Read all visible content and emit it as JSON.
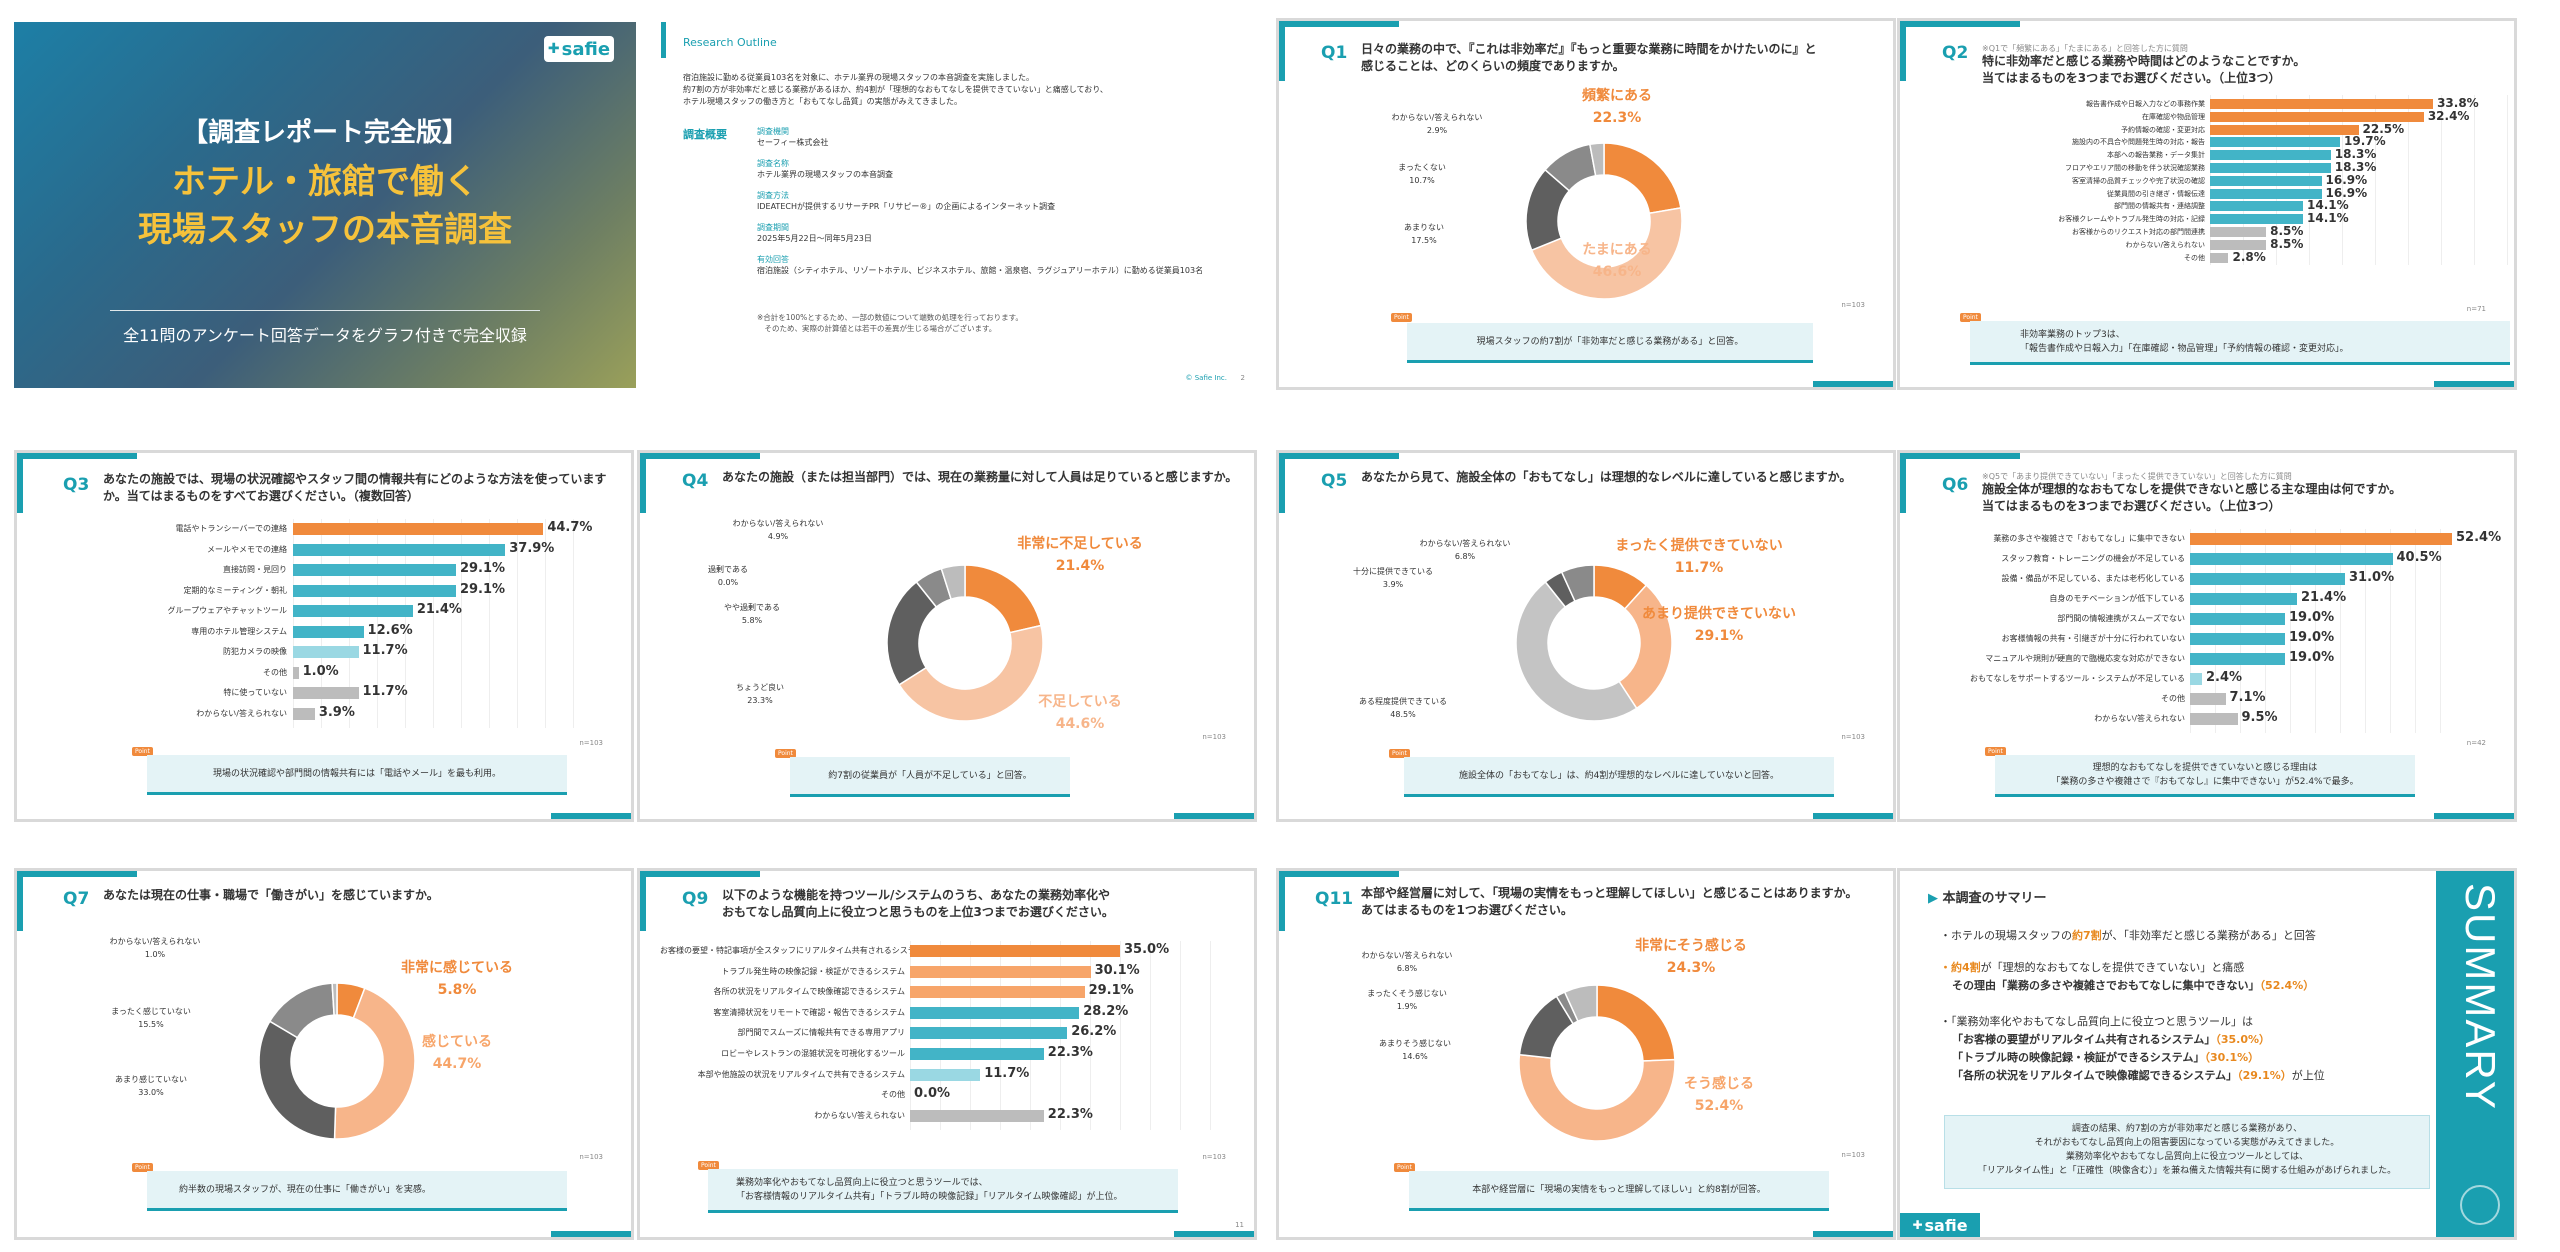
{
  "colors": {
    "orange": "#f08a3c",
    "peach": "#f7c4a3",
    "dark": "#5f5f5f",
    "gray": "#bcbcbc",
    "teal": "#42b4c7",
    "lightteal": "#9ad8e3",
    "lightgray": "#d2d2d2",
    "accent_teal": "#1a9fb0"
  },
  "cover": {
    "logo": "safie",
    "title_line1": "【調査レポート完全版】",
    "title_line2": "ホテル・旅館で働く",
    "title_line3": "現場スタッフの本音調査",
    "subtitle": "全11問のアンケート回答データをグラフ付きで完全収録"
  },
  "outline": {
    "heading": "Research Outline",
    "intro": "宿泊施設に勤める従業員103名を対象に、ホテル業界の現場スタッフの本音調査を実施しました。\n約7割の方が非効率だと感じる業務があるほか、約4割が「理想的なおもてなしを提供できていない」と痛感しており、\nホテル現場スタッフの働き方と「おもてなし品質」の実態がみえてきました。",
    "section_label": "調査概要",
    "items": [
      {
        "k": "調査機関",
        "v": "セーフィー株式会社"
      },
      {
        "k": "調査名称",
        "v": "ホテル業界の現場スタッフの本音調査"
      },
      {
        "k": "調査方法",
        "v": "IDEATECHが提供するリサーチPR「リサピー®」の企画によるインターネット調査"
      },
      {
        "k": "調査期間",
        "v": "2025年5月22日〜同年5月23日"
      },
      {
        "k": "有効回答",
        "v": "宿泊施設（シティホテル、リゾートホテル、ビジネスホテル、旅館・温泉宿、ラグジュアリーホテル）に勤める従業員103名"
      }
    ],
    "note": "※合計を100%とするため、一部の数値について端数の処理を行っております。\n　そのため、実際の計算値とは若干の差異が生じる場合がございます。",
    "footer": "© Safie Inc.",
    "page": "2"
  },
  "q1": {
    "num": "Q1",
    "text": "日々の業務の中で、『これは非効率だ』『もっと重要な業務に時間をかけたいのに』と\n感じることは、どのくらいの頻度でありますか。",
    "n": "n=103",
    "point_tag": "Point",
    "point": "現場スタッフの約7割が「非効率だと感じる業務がある」と回答。",
    "chart_data": {
      "type": "pie",
      "labels": [
        "頻繁にある",
        "たまにある",
        "あまりない",
        "まったくない",
        "わからない/答えられない"
      ],
      "values": [
        22.3,
        46.6,
        17.5,
        10.7,
        2.9
      ],
      "colors": [
        "#f08a3c",
        "#f7c4a3",
        "#5f5f5f",
        "#8a8a8a",
        "#bcbcbc"
      ]
    },
    "label_texts": [
      "頻繁にある\n22.3%",
      "たまにある\n46.6%",
      "あまりない\n17.5%",
      "まったくない\n10.7%",
      "わからない/答えられない\n2.9%"
    ]
  },
  "q2": {
    "num": "Q2",
    "sub": "※Q1で「頻繁にある」「たまにある」と回答した方に質問",
    "text": "特に非効率だと感じる業務や時間はどのようなことですか。\n当てはまるものを3つまでお選びください。（上位3つ）",
    "n": "n=71",
    "point_tag": "Point",
    "point": "非効率業務のトップ3は、\n「報告書作成や日報入力」「在庫確認・物品管理」「予約情報の確認・変更対応」。",
    "chart_data": {
      "type": "bar",
      "categories": [
        "報告書作成や日報入力などの事務作業",
        "在庫確認や物品管理",
        "予約情報の確認・変更対応",
        "施設内の不具合や問題発生時の対応・報告",
        "本部への報告業務・データ集計",
        "フロアやエリア間の移動を伴う状況確認業務",
        "客室清掃の品質チェックや完了状況の確認",
        "従業員間の引き継ぎ・情報伝達",
        "部門間の情報共有・連絡調整",
        "お客様クレームやトラブル発生時の対応・記録",
        "お客様からのリクエスト対応の部門間連携",
        "わからない/答えられない",
        "その他"
      ],
      "values": [
        33.8,
        32.4,
        22.5,
        19.7,
        18.3,
        18.3,
        16.9,
        16.9,
        14.1,
        14.1,
        8.5,
        8.5,
        2.8
      ],
      "colors": [
        "#f08a3c",
        "#f08a3c",
        "#f08a3c",
        "#42b4c7",
        "#42b4c7",
        "#42b4c7",
        "#42b4c7",
        "#42b4c7",
        "#42b4c7",
        "#42b4c7",
        "#bcbcbc",
        "#bcbcbc",
        "#bcbcbc"
      ]
    },
    "value_texts": [
      "33.8%",
      "32.4%",
      "22.5%",
      "19.7%",
      "18.3%",
      "18.3%",
      "16.9%",
      "16.9%",
      "14.1%",
      "14.1%",
      "8.5%",
      "8.5%",
      "2.8%"
    ]
  },
  "q3": {
    "num": "Q3",
    "text": "あなたの施設では、現場の状況確認やスタッフ間の情報共有にどのような方法を使っています\nか。当てはまるものをすべてお選びください。（複数回答）",
    "n": "n=103",
    "point_tag": "Point",
    "point": "現場の状況確認や部門間の情報共有には「電話やメール」を最も利用。",
    "chart_data": {
      "type": "bar",
      "categories": [
        "電話やトランシーバーでの連絡",
        "メールやメモでの連絡",
        "直接訪問・見回り",
        "定期的なミーティング・朝礼",
        "グループウェアやチャットツール",
        "専用のホテル管理システム",
        "防犯カメラの映像",
        "その他",
        "特に使っていない",
        "わからない/答えられない"
      ],
      "values": [
        44.7,
        37.9,
        29.1,
        29.1,
        21.4,
        12.6,
        11.7,
        1.0,
        11.7,
        3.9
      ],
      "colors": [
        "#f08a3c",
        "#42b4c7",
        "#42b4c7",
        "#42b4c7",
        "#42b4c7",
        "#42b4c7",
        "#9ad8e3",
        "#bcbcbc",
        "#bcbcbc",
        "#bcbcbc"
      ]
    },
    "value_texts": [
      "44.7%",
      "37.9%",
      "29.1%",
      "29.1%",
      "21.4%",
      "12.6%",
      "11.7%",
      "1.0%",
      "11.7%",
      "3.9%"
    ]
  },
  "q4": {
    "num": "Q4",
    "text": "あなたの施設（または担当部門）では、現在の業務量に対して人員は足りていると感じますか。",
    "n": "n=103",
    "point_tag": "Point",
    "point": "約7割の従業員が「人員が不足している」と回答。",
    "chart_data": {
      "type": "pie",
      "labels": [
        "非常に不足している",
        "不足している",
        "ちょうど良い",
        "やや過剰である",
        "過剰である",
        "わからない/答えられない"
      ],
      "values": [
        21.4,
        44.6,
        23.3,
        5.8,
        0.0,
        4.9
      ],
      "colors": [
        "#f08a3c",
        "#f7c4a3",
        "#5f5f5f",
        "#8a8a8a",
        "#a8a8a8",
        "#bcbcbc"
      ]
    },
    "label_texts": [
      "非常に不足している\n21.4%",
      "不足している\n44.6%",
      "ちょうど良い\n23.3%",
      "やや過剰である\n5.8%",
      "過剰である\n0.0%",
      "わからない/答えられない\n4.9%"
    ]
  },
  "q5": {
    "num": "Q5",
    "text": "あなたから見て、施設全体の「おもてなし」は理想的なレベルに達していると感じますか。",
    "n": "n=103",
    "point_tag": "Point",
    "point": "施設全体の「おもてなし」は、約4割が理想的なレベルに達していないと回答。",
    "chart_data": {
      "type": "pie",
      "labels": [
        "まったく提供できていない",
        "あまり提供できていない",
        "ある程度提供できている",
        "十分に提供できている",
        "わからない/答えられない"
      ],
      "values": [
        11.7,
        29.1,
        48.5,
        3.9,
        6.8
      ],
      "colors": [
        "#f08a3c",
        "#f7b58a",
        "#c4c4c4",
        "#5f5f5f",
        "#8a8a8a"
      ]
    },
    "label_texts": [
      "まったく提供できていない\n11.7%",
      "あまり提供できていない\n29.1%",
      "ある程度提供できている\n48.5%",
      "十分に提供できている\n3.9%",
      "わからない/答えられない\n6.8%"
    ]
  },
  "q6": {
    "num": "Q6",
    "sub": "※Q5で「あまり提供できていない」「まったく提供できていない」と回答した方に質問",
    "text": "施設全体が理想的なおもてなしを提供できないと感じる主な理由は何ですか。\n当てはまるものを3つまでお選びください。（上位3つ）",
    "n": "n=42",
    "point_tag": "Point",
    "point": "理想的なおもてなしを提供できていないと感じる理由は\n「業務の多さや複雑さで『おもてなし』に集中できない」が52.4%で最多。",
    "chart_data": {
      "type": "bar",
      "categories": [
        "業務の多さや複雑さで「おもてなし」に集中できない",
        "スタッフ教育・トレーニングの機会が不足している",
        "設備・備品が不足している、または老朽化している",
        "自身のモチベーションが低下している",
        "部門間の情報連携がスムーズでない",
        "お客様情報の共有・引継ぎが十分に行われていない",
        "マニュアルや規則が硬直的で臨機応変な対応ができない",
        "おもてなしをサポートするツール・システムが不足している",
        "その他",
        "わからない/答えられない"
      ],
      "values": [
        52.4,
        40.5,
        31.0,
        21.4,
        19.0,
        19.0,
        19.0,
        2.4,
        7.1,
        9.5
      ],
      "colors": [
        "#f08a3c",
        "#42b4c7",
        "#42b4c7",
        "#42b4c7",
        "#42b4c7",
        "#42b4c7",
        "#42b4c7",
        "#9ad8e3",
        "#bcbcbc",
        "#bcbcbc"
      ]
    },
    "value_texts": [
      "52.4%",
      "40.5%",
      "31.0%",
      "21.4%",
      "19.0%",
      "19.0%",
      "19.0%",
      "2.4%",
      "7.1%",
      "9.5%"
    ]
  },
  "q7": {
    "num": "Q7",
    "text": "あなたは現在の仕事・職場で「働きがい」を感じていますか。",
    "n": "n=103",
    "point_tag": "Point",
    "point": "約半数の現場スタッフが、現在の仕事に「働きがい」を実感。",
    "chart_data": {
      "type": "pie",
      "labels": [
        "非常に感じている",
        "感じている",
        "あまり感じていない",
        "まったく感じていない",
        "わからない/答えられない"
      ],
      "values": [
        5.8,
        44.7,
        33.0,
        15.5,
        1.0
      ],
      "colors": [
        "#f08a3c",
        "#f7b58a",
        "#5f5f5f",
        "#8a8a8a",
        "#bcbcbc"
      ]
    },
    "label_texts": [
      "非常に感じている\n5.8%",
      "感じている\n44.7%",
      "あまり感じていない\n33.0%",
      "まったく感じていない\n15.5%",
      "わからない/答えられない\n1.0%"
    ]
  },
  "q9": {
    "num": "Q9",
    "text": "以下のような機能を持つツール/システムのうち、あなたの業務効率化や\nおもてなし品質向上に役立つと思うものを上位3つまでお選びください。",
    "n": "n=103",
    "point_tag": "Point",
    "point": "業務効率化やおもてなし品質向上に役立つと思うツールでは、\n「お客様情報のリアルタイム共有」「トラブル時の映像記録」「リアルタイム映像確認」が上位。",
    "page": "11",
    "chart_data": {
      "type": "bar",
      "categories": [
        "お客様の要望・特記事項が全スタッフにリアルタイム共有されるシステム",
        "トラブル発生時の映像記録・検証ができるシステム",
        "各所の状況をリアルタイムで映像確認できるシステム",
        "客室清掃状況をリモートで確認・報告できるシステム",
        "部門間でスムーズに情報共有できる専用アプリ",
        "ロビーやレストランの混雑状況を可視化するツール",
        "本部や他施設の状況をリアルタイムで共有できるシステム",
        "その他",
        "わからない/答えられない"
      ],
      "values": [
        35.0,
        30.1,
        29.1,
        28.2,
        26.2,
        22.3,
        11.7,
        0.0,
        22.3
      ],
      "colors": [
        "#f08a3c",
        "#f7a56a",
        "#f7a56a",
        "#42b4c7",
        "#42b4c7",
        "#42b4c7",
        "#9ad8e3",
        "#bcbcbc",
        "#bcbcbc"
      ]
    },
    "value_texts": [
      "35.0%",
      "30.1%",
      "29.1%",
      "28.2%",
      "26.2%",
      "22.3%",
      "11.7%",
      "0.0%",
      "22.3%"
    ]
  },
  "q11": {
    "num": "Q11",
    "text": "本部や経営層に対して、「現場の実情をもっと理解してほしい」と感じることはありますか。\nあてはまるものを1つお選びください。",
    "n": "n=103",
    "point_tag": "Point",
    "point": "本部や経営層に「現場の実情をもっと理解してほしい」と約8割が回答。",
    "chart_data": {
      "type": "pie",
      "labels": [
        "非常にそう感じる",
        "そう感じる",
        "あまりそう感じない",
        "まったくそう感じない",
        "わからない/答えられない"
      ],
      "values": [
        24.3,
        52.4,
        14.6,
        1.9,
        6.8
      ],
      "colors": [
        "#f08a3c",
        "#f7b58a",
        "#5f5f5f",
        "#8a8a8a",
        "#bcbcbc"
      ]
    },
    "label_texts": [
      "非常にそう感じる\n24.3%",
      "そう感じる\n52.4%",
      "あまりそう感じない\n14.6%",
      "まったくそう感じない\n1.9%",
      "わからない/答えられない\n6.8%"
    ]
  },
  "summary": {
    "heading": "本調査のサマリー",
    "side": "SUMMARY",
    "b1_pre": "・ホテルの現場スタッフの",
    "b1_hl": "約7割",
    "b1_post": "が、「非効率だと感じる業務がある」と回答",
    "b2_hl": "・約4割",
    "b2_mid": "が「理想的なおもてなしを提供できていない」と痛感",
    "b2_line2": "その理由「業務の多さや複雑さでおもてなしに集中できない」",
    "b2_pct": "（52.4%）",
    "b3_line1": "・「業務効率化やおもてなし品質向上に役立つと思うツール」は",
    "b3_a": "「お客様の要望がリアルタイム共有されるシステム」",
    "b3_a_pct": "（35.0%）",
    "b3_b": "「トラブル時の映像記録・検証ができるシステム」",
    "b3_b_pct": "（30.1%）",
    "b3_c": "「各所の状況をリアルタイムで映像確認できるシステム」",
    "b3_c_pct": "（29.1%）",
    "b3_c_post": "が上位",
    "box": "調査の結果、約7割の方が非効率だと感じる業務があり、\nそれがおもてなし品質向上の阻害要因になっている実態がみえてきました。\n業務効率化やおもてなし品質向上に役立つツールとしては、\n「リアルタイム性」と「正確性（映像含む）」を兼ね備えた情報共有に関する仕組みがあげられました。",
    "logo": "safie"
  }
}
